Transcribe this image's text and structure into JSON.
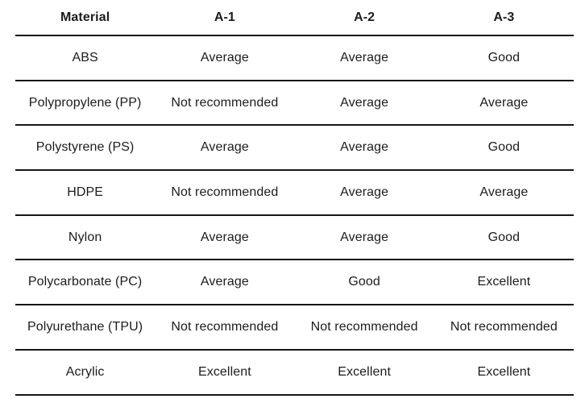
{
  "chart_data": {
    "type": "table",
    "title": "",
    "columns": [
      "Material",
      "A-1",
      "A-2",
      "A-3"
    ],
    "rows": [
      [
        "ABS",
        "Average",
        "Average",
        "Good"
      ],
      [
        "Polypropylene (PP)",
        "Not recommended",
        "Average",
        "Average"
      ],
      [
        "Polystyrene (PS)",
        "Average",
        "Average",
        "Good"
      ],
      [
        "HDPE",
        "Not recommended",
        "Average",
        "Average"
      ],
      [
        "Nylon",
        "Average",
        "Average",
        "Good"
      ],
      [
        "Polycarbonate (PC)",
        "Average",
        "Good",
        "Excellent"
      ],
      [
        "Polyurethane (TPU)",
        "Not recommended",
        "Not recommended",
        "Not recommended"
      ],
      [
        "Acrylic",
        "Excellent",
        "Excellent",
        "Excellent"
      ]
    ],
    "layout": {
      "grid": "horizontal-rules-only",
      "text_align": "center"
    },
    "colors": {
      "text": "#1c1c1c",
      "border": "#161616",
      "background": "#ffffff"
    }
  }
}
